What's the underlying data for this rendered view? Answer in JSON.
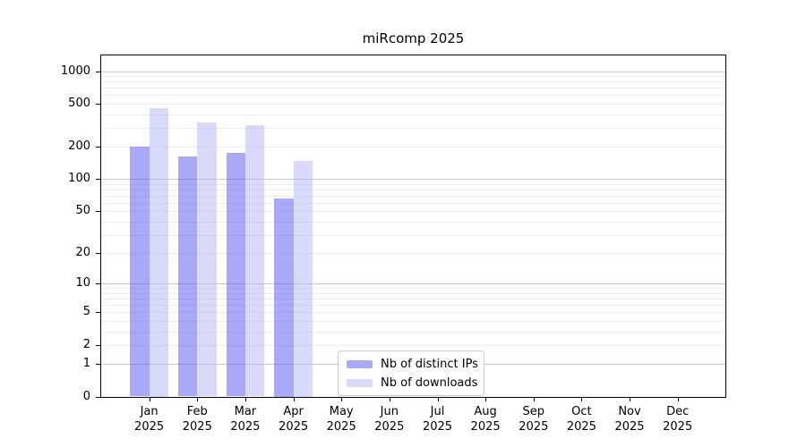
{
  "chart_data": {
    "type": "bar",
    "title": "miRcomp 2025",
    "categories": [
      "Jan",
      "Feb",
      "Mar",
      "Apr",
      "May",
      "Jun",
      "Jul",
      "Aug",
      "Sep",
      "Oct",
      "Nov",
      "Dec"
    ],
    "x_tick_second_line": "2025",
    "series": [
      {
        "name": "Nb of distinct IPs",
        "color": "#5454f2",
        "opacity": 0.5,
        "apparent_color": "#a9a9f8",
        "values": [
          200,
          162,
          174,
          66,
          null,
          null,
          null,
          null,
          null,
          null,
          null,
          null
        ]
      },
      {
        "name": "Nb of downloads",
        "color": "#b3b3f3",
        "opacity": 0.5,
        "apparent_color": "#d9d9f9",
        "values": [
          455,
          334,
          318,
          149,
          null,
          null,
          null,
          null,
          null,
          null,
          null,
          null
        ]
      }
    ],
    "y_ticks": [
      0,
      1,
      2,
      5,
      10,
      20,
      50,
      100,
      200,
      500,
      1000
    ],
    "y_scale": "log10(value+1)",
    "ylim": [
      0,
      1385
    ],
    "grid": true,
    "gridline_major_values": [
      1,
      10,
      100,
      1000
    ],
    "grid_major_color": "#c8c8c8",
    "grid_minor_color": "#ededed",
    "axis_color": "#000000",
    "legend_position": "inside-bottom-center"
  }
}
